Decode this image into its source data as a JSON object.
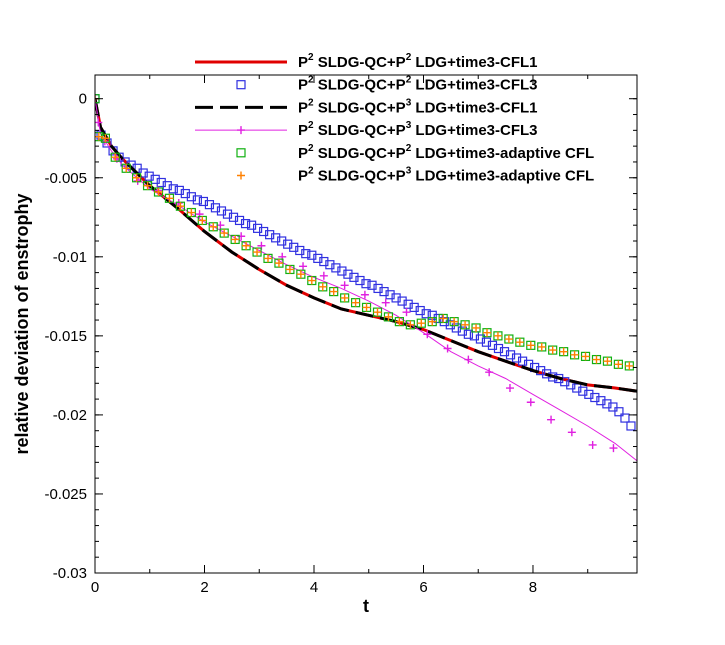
{
  "chart_data": {
    "type": "line",
    "title": "",
    "xlabel": "t",
    "ylabel": "relative deviation of enstrophy",
    "xlim": [
      0,
      9.9
    ],
    "ylim": [
      -0.03,
      0.0015
    ],
    "xticks": [
      0,
      2,
      4,
      6,
      8
    ],
    "xtick_labels": [
      "0",
      "2",
      "4",
      "6",
      "8"
    ],
    "yticks": [
      0,
      -0.005,
      -0.01,
      -0.015,
      -0.02,
      -0.025,
      -0.03
    ],
    "ytick_labels": [
      "0",
      "-0.005",
      "-0.01",
      "-0.015",
      "-0.02",
      "-0.025",
      "-0.03"
    ],
    "grid": false,
    "legend_position": "top-right",
    "series": [
      {
        "name": "P2 SLDG-QC+P2 LDG+time3-CFL1",
        "legend": {
          "p1": "P",
          "sup1": "2",
          "mid": " SLDG-QC+P",
          "sup2": "2",
          "rest": " LDG+time3-CFL1"
        },
        "color": "#e00000",
        "style": "line",
        "dash": "",
        "x": [
          0,
          0.1,
          0.3,
          0.5,
          1,
          1.5,
          2,
          2.5,
          3,
          3.5,
          4,
          4.5,
          5,
          5.5,
          6,
          6.5,
          7,
          7.5,
          8,
          8.5,
          9,
          9.5,
          9.9
        ],
        "values": [
          0,
          -0.0018,
          -0.003,
          -0.0038,
          -0.0055,
          -0.0069,
          -0.0084,
          -0.0097,
          -0.0108,
          -0.0118,
          -0.0126,
          -0.0133,
          -0.0137,
          -0.0141,
          -0.0146,
          -0.0153,
          -0.016,
          -0.0166,
          -0.0172,
          -0.0177,
          -0.0181,
          -0.0183,
          -0.0185
        ]
      },
      {
        "name": "P2 SLDG-QC+P2 LDG+time3-CFL3",
        "legend": {
          "p1": "P",
          "sup1": "2",
          "mid": " SLDG-QC+P",
          "sup2": "2",
          "rest": " LDG+time3-CFL3"
        },
        "color": "#3030e0",
        "style": "markers",
        "marker": "square",
        "x": [
          0,
          0.11,
          0.22,
          0.33,
          0.44,
          0.55,
          0.66,
          0.77,
          0.88,
          0.99,
          1.1,
          1.21,
          1.32,
          1.43,
          1.54,
          1.65,
          1.76,
          1.87,
          1.98,
          2.09,
          2.2,
          2.31,
          2.42,
          2.53,
          2.64,
          2.75,
          2.86,
          2.97,
          3.08,
          3.19,
          3.3,
          3.41,
          3.52,
          3.63,
          3.74,
          3.85,
          3.96,
          4.07,
          4.18,
          4.29,
          4.4,
          4.51,
          4.62,
          4.73,
          4.84,
          4.95,
          5.06,
          5.17,
          5.28,
          5.39,
          5.5,
          5.61,
          5.72,
          5.83,
          5.94,
          6.05,
          6.16,
          6.27,
          6.38,
          6.49,
          6.6,
          6.71,
          6.82,
          6.93,
          7.04,
          7.15,
          7.26,
          7.37,
          7.48,
          7.59,
          7.7,
          7.81,
          7.92,
          8.03,
          8.14,
          8.25,
          8.36,
          8.47,
          8.58,
          8.69,
          8.8,
          8.91,
          9.02,
          9.13,
          9.24,
          9.35,
          9.46,
          9.57,
          9.68,
          9.79
        ],
        "values": [
          0,
          -0.0023,
          -0.0028,
          -0.0033,
          -0.0037,
          -0.004,
          -0.0042,
          -0.0044,
          -0.0047,
          -0.0049,
          -0.0051,
          -0.0053,
          -0.0055,
          -0.0057,
          -0.0058,
          -0.006,
          -0.0062,
          -0.0064,
          -0.0065,
          -0.0067,
          -0.0069,
          -0.0071,
          -0.0073,
          -0.0075,
          -0.0077,
          -0.0079,
          -0.008,
          -0.0082,
          -0.0084,
          -0.0086,
          -0.0088,
          -0.009,
          -0.0092,
          -0.0094,
          -0.0096,
          -0.0098,
          -0.0099,
          -0.0101,
          -0.0103,
          -0.0105,
          -0.0107,
          -0.0109,
          -0.0111,
          -0.0113,
          -0.0115,
          -0.0117,
          -0.0118,
          -0.012,
          -0.0122,
          -0.0124,
          -0.0126,
          -0.0128,
          -0.013,
          -0.0132,
          -0.0134,
          -0.0136,
          -0.0137,
          -0.0139,
          -0.0141,
          -0.0143,
          -0.0145,
          -0.0147,
          -0.0149,
          -0.015,
          -0.0152,
          -0.0154,
          -0.0156,
          -0.0158,
          -0.016,
          -0.0162,
          -0.0164,
          -0.0166,
          -0.0168,
          -0.017,
          -0.0172,
          -0.0174,
          -0.0176,
          -0.0177,
          -0.0179,
          -0.0181,
          -0.0183,
          -0.0185,
          -0.0187,
          -0.0189,
          -0.0191,
          -0.0193,
          -0.0195,
          -0.0198,
          -0.0202,
          -0.0207
        ]
      },
      {
        "name": "P2 SLDG-QC+P3 LDG+time3-CFL1",
        "legend": {
          "p1": "P",
          "sup1": "2",
          "mid": " SLDG-QC+P",
          "sup2": "3",
          "rest": " LDG+time3-CFL1"
        },
        "color": "#000000",
        "style": "line",
        "dash": "18,7",
        "x": [
          0,
          0.1,
          0.3,
          0.5,
          1,
          1.5,
          2,
          2.5,
          3,
          3.5,
          4,
          4.5,
          5,
          5.5,
          6,
          6.5,
          7,
          7.5,
          8,
          8.5,
          9,
          9.5,
          9.9
        ],
        "values": [
          0,
          -0.0018,
          -0.003,
          -0.0038,
          -0.0055,
          -0.0069,
          -0.0084,
          -0.0097,
          -0.0108,
          -0.0118,
          -0.0126,
          -0.0133,
          -0.0137,
          -0.0141,
          -0.0146,
          -0.0153,
          -0.016,
          -0.0166,
          -0.0172,
          -0.0177,
          -0.0181,
          -0.0183,
          -0.0185
        ]
      },
      {
        "name": "P2 SLDG-QC+P3 LDG+time3-CFL3",
        "legend": {
          "p1": "P",
          "sup1": "2",
          "mid": " SLDG-QC+P",
          "sup2": "3",
          "rest": " LDG+time3-CFL3"
        },
        "color": "#e020e0",
        "style": "line+markers",
        "marker": "plus",
        "x": [
          0,
          0.1,
          0.3,
          0.5,
          1,
          1.5,
          2,
          2.5,
          3,
          3.5,
          4,
          4.5,
          5,
          5.5,
          6,
          6.5,
          7,
          7.5,
          8,
          8.5,
          9,
          9.5,
          9.9
        ],
        "values": [
          0,
          -0.0022,
          -0.0033,
          -0.0042,
          -0.0057,
          -0.0067,
          -0.0078,
          -0.0087,
          -0.0096,
          -0.0105,
          -0.0113,
          -0.012,
          -0.0128,
          -0.0137,
          -0.0148,
          -0.016,
          -0.0169,
          -0.0177,
          -0.0187,
          -0.0197,
          -0.0207,
          -0.0218,
          -0.0229
        ],
        "marker_x": [
          0,
          0.06,
          0.18,
          0.4,
          0.78,
          1.15,
          1.53,
          1.91,
          2.29,
          2.67,
          3.04,
          3.42,
          3.8,
          4.18,
          4.56,
          4.93,
          5.31,
          5.69,
          6.07,
          6.44,
          6.82,
          7.2,
          7.58,
          7.96,
          8.33,
          8.71,
          9.09,
          9.47
        ],
        "marker_values": [
          0,
          -0.0015,
          -0.0027,
          -0.0038,
          -0.0052,
          -0.0058,
          -0.0066,
          -0.0073,
          -0.008,
          -0.0087,
          -0.0093,
          -0.01,
          -0.0106,
          -0.0112,
          -0.0118,
          -0.0124,
          -0.0129,
          -0.0135,
          -0.0149,
          -0.0158,
          -0.0165,
          -0.0173,
          -0.0183,
          -0.0192,
          -0.0203,
          -0.0211,
          -0.0219,
          -0.0221
        ]
      },
      {
        "name": "P2 SLDG-QC+P2 LDG+time3-adaptive CFL",
        "legend": {
          "p1": "P",
          "sup1": "2",
          "mid": " SLDG-QC+P",
          "sup2": "2",
          "rest": " LDG+time3-adaptive CFL"
        },
        "color": "#10b010",
        "style": "markers",
        "marker": "square",
        "x": [
          0,
          0.07,
          0.19,
          0.37,
          0.57,
          0.76,
          0.96,
          1.16,
          1.36,
          1.56,
          1.76,
          1.96,
          2.16,
          2.36,
          2.56,
          2.76,
          2.96,
          3.16,
          3.36,
          3.56,
          3.76,
          3.96,
          4.16,
          4.36,
          4.56,
          4.76,
          4.96,
          5.16,
          5.36,
          5.56,
          5.76,
          5.96,
          6.16,
          6.36,
          6.56,
          6.76,
          6.96,
          7.16,
          7.36,
          7.56,
          7.76,
          7.96,
          8.16,
          8.36,
          8.56,
          8.76,
          8.96,
          9.16,
          9.36,
          9.56,
          9.76
        ],
        "values": [
          0,
          -0.0024,
          -0.0025,
          -0.0037,
          -0.0044,
          -0.005,
          -0.0055,
          -0.0059,
          -0.0063,
          -0.0068,
          -0.0072,
          -0.0077,
          -0.0081,
          -0.0085,
          -0.0089,
          -0.0093,
          -0.0097,
          -0.0101,
          -0.0104,
          -0.0108,
          -0.0111,
          -0.0115,
          -0.0119,
          -0.0122,
          -0.0126,
          -0.0129,
          -0.0132,
          -0.0135,
          -0.0138,
          -0.0141,
          -0.0143,
          -0.0142,
          -0.0141,
          -0.0139,
          -0.0141,
          -0.0143,
          -0.0145,
          -0.0148,
          -0.015,
          -0.0152,
          -0.0154,
          -0.0156,
          -0.0157,
          -0.0159,
          -0.016,
          -0.0162,
          -0.0163,
          -0.0165,
          -0.0166,
          -0.0168,
          -0.0169
        ]
      },
      {
        "name": "P2 SLDG-QC+P3 LDG+time3-adaptive CFL",
        "legend": {
          "p1": "P",
          "sup1": "2",
          "mid": " SLDG-QC+P",
          "sup2": "3",
          "rest": " LDG+time3-adaptive CFL"
        },
        "color": "#ff8000",
        "style": "markers",
        "marker": "plus",
        "x": [
          0,
          0.07,
          0.19,
          0.37,
          0.57,
          0.76,
          0.96,
          1.16,
          1.36,
          1.56,
          1.76,
          1.96,
          2.16,
          2.36,
          2.56,
          2.76,
          2.96,
          3.16,
          3.36,
          3.56,
          3.76,
          3.96,
          4.16,
          4.36,
          4.56,
          4.76,
          4.96,
          5.16,
          5.36,
          5.56,
          5.76,
          5.96,
          6.16,
          6.36,
          6.56,
          6.76,
          6.96,
          7.16,
          7.36,
          7.56,
          7.76,
          7.96,
          8.16,
          8.36,
          8.56,
          8.76,
          8.96,
          9.16,
          9.36,
          9.56,
          9.76
        ],
        "values": [
          0,
          -0.0024,
          -0.0025,
          -0.0037,
          -0.0044,
          -0.005,
          -0.0055,
          -0.0059,
          -0.0063,
          -0.0068,
          -0.0072,
          -0.0077,
          -0.0081,
          -0.0085,
          -0.0089,
          -0.0093,
          -0.0097,
          -0.0101,
          -0.0104,
          -0.0108,
          -0.0111,
          -0.0115,
          -0.0119,
          -0.0122,
          -0.0126,
          -0.0129,
          -0.0132,
          -0.0135,
          -0.0138,
          -0.0141,
          -0.0143,
          -0.0142,
          -0.0141,
          -0.0139,
          -0.0141,
          -0.0143,
          -0.0145,
          -0.0148,
          -0.015,
          -0.0152,
          -0.0154,
          -0.0156,
          -0.0157,
          -0.0159,
          -0.016,
          -0.0162,
          -0.0163,
          -0.0165,
          -0.0166,
          -0.0168,
          -0.0169
        ]
      }
    ]
  }
}
